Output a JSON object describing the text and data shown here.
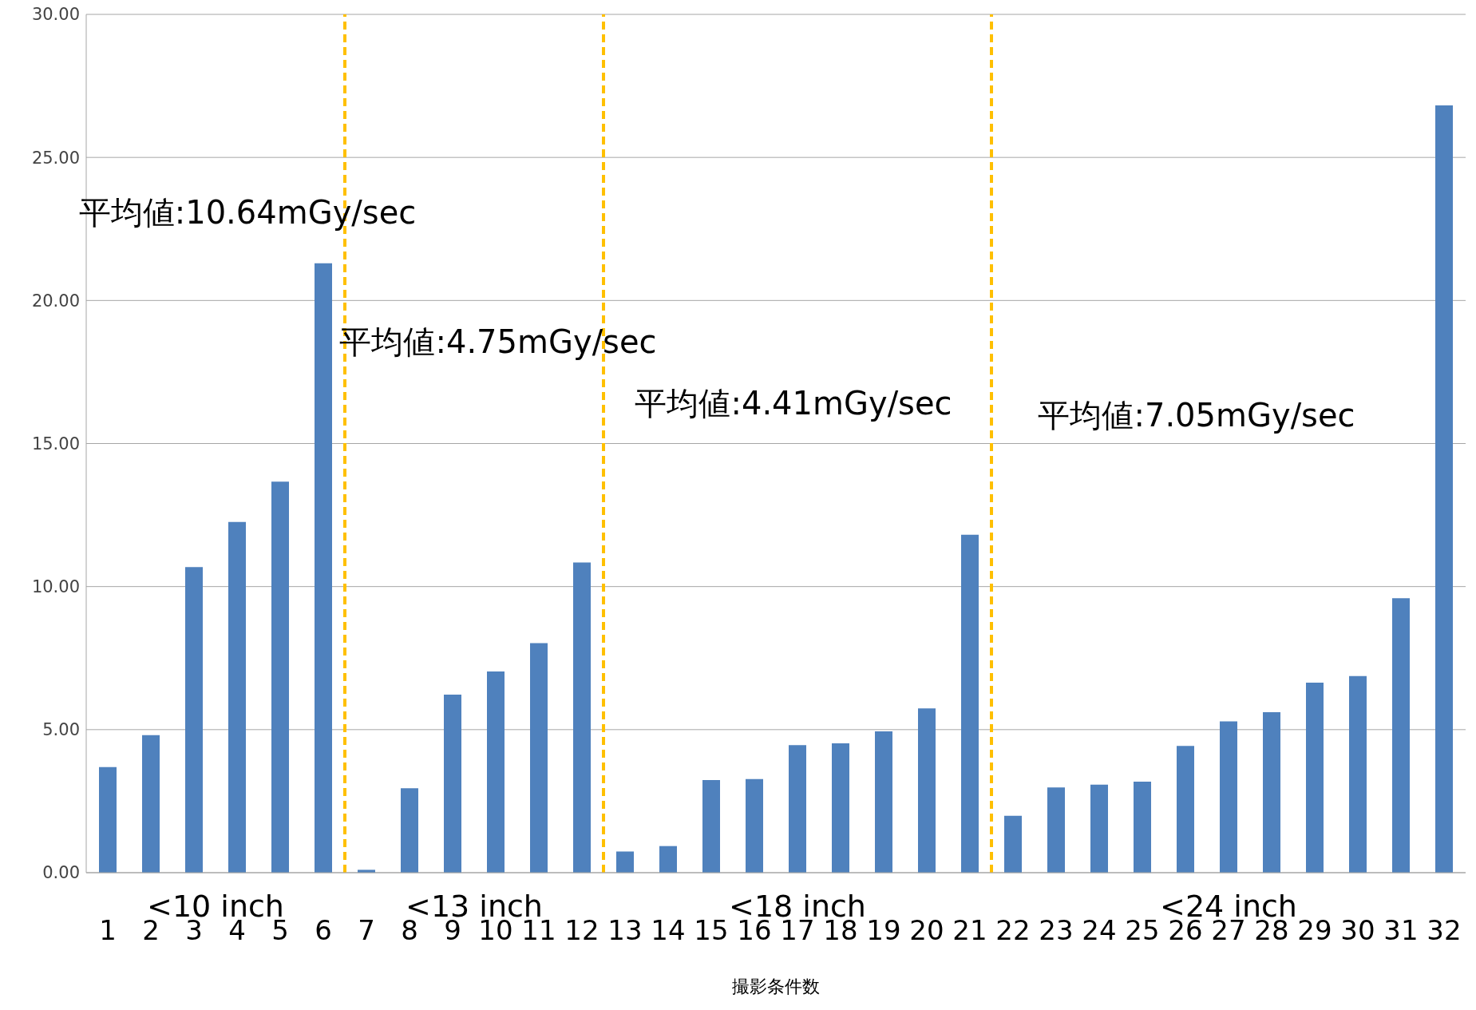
{
  "chart_data": {
    "type": "bar",
    "xlabel": "撮影条件数",
    "x": [
      1,
      2,
      3,
      4,
      5,
      6,
      7,
      8,
      9,
      10,
      11,
      12,
      13,
      14,
      15,
      16,
      17,
      18,
      19,
      20,
      21,
      22,
      23,
      24,
      25,
      26,
      27,
      28,
      29,
      30,
      31,
      32
    ],
    "values": [
      3.69,
      4.81,
      10.68,
      12.26,
      13.67,
      21.3,
      0.1,
      2.95,
      6.22,
      7.03,
      8.02,
      10.84,
      0.74,
      0.93,
      3.24,
      3.27,
      4.46,
      4.52,
      4.94,
      5.74,
      11.81,
      1.99,
      2.98,
      3.08,
      3.18,
      4.43,
      5.29,
      5.61,
      6.64,
      6.87,
      9.59,
      26.82
    ],
    "color": "#4f81bd",
    "xlim": [
      0.5,
      32.5
    ],
    "xticks": [
      1,
      2,
      3,
      4,
      5,
      6,
      7,
      8,
      9,
      10,
      11,
      12,
      13,
      14,
      15,
      16,
      17,
      18,
      19,
      20,
      21,
      22,
      23,
      24,
      25,
      26,
      27,
      28,
      29,
      30,
      31,
      32
    ],
    "ylim": [
      0,
      30
    ],
    "yticks": [
      {
        "value": 0,
        "label": "0.00"
      },
      {
        "value": 5,
        "label": "5.00"
      },
      {
        "value": 10,
        "label": "10.00"
      },
      {
        "value": 15,
        "label": "15.00"
      },
      {
        "value": 20,
        "label": "20.00"
      },
      {
        "value": 25,
        "label": "25.00"
      },
      {
        "value": 30,
        "label": "30.00"
      }
    ],
    "grid": "y",
    "ref_lines": [
      {
        "axis": "x",
        "value": 6.5,
        "color": "#ffc000",
        "line_style": "dashed"
      },
      {
        "axis": "x",
        "value": 12.5,
        "color": "#ffc000",
        "line_style": "dashed"
      },
      {
        "axis": "x",
        "value": 21.5,
        "color": "#ffc000",
        "line_style": "dashed"
      }
    ],
    "annotations": [
      "平均値:10.64mGy/sec",
      "平均値:4.75mGy/sec",
      "平均値:4.41mGy/sec",
      "平均値:7.05mGy/sec",
      "<10 inch",
      "<13 inch",
      "<18 inch",
      "<24 inch"
    ]
  }
}
